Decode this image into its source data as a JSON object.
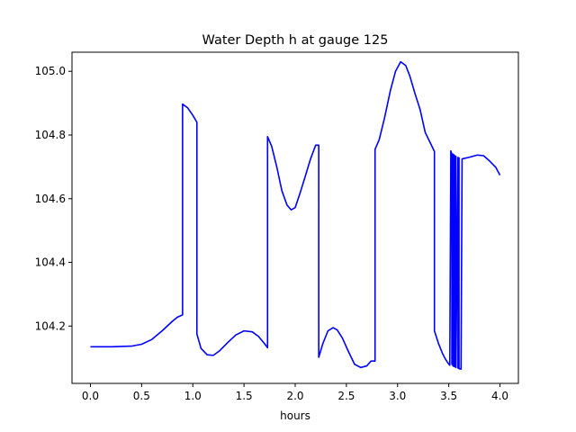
{
  "chart_data": {
    "type": "line",
    "title": "Water Depth h at gauge 125",
    "xlabel": "hours",
    "ylabel": "",
    "xlim": [
      -0.18,
      4.18
    ],
    "ylim": [
      104.02,
      105.06
    ],
    "x_ticks": [
      0.0,
      0.5,
      1.0,
      1.5,
      2.0,
      2.5,
      3.0,
      3.5,
      4.0
    ],
    "x_tick_labels": [
      "0.0",
      "0.5",
      "1.0",
      "1.5",
      "2.0",
      "2.5",
      "3.0",
      "3.5",
      "4.0"
    ],
    "y_ticks": [
      104.2,
      104.4,
      104.6,
      104.8,
      105.0
    ],
    "y_tick_labels": [
      "104.2",
      "104.4",
      "104.6",
      "104.8",
      "105.0"
    ],
    "grid": false,
    "series": [
      {
        "color": "#0000ff",
        "x": [
          0.0,
          0.2,
          0.4,
          0.5,
          0.6,
          0.7,
          0.8,
          0.85,
          0.9,
          0.9,
          0.95,
          1.0,
          1.04,
          1.04,
          1.08,
          1.14,
          1.2,
          1.26,
          1.34,
          1.42,
          1.5,
          1.58,
          1.64,
          1.7,
          1.73,
          1.73,
          1.77,
          1.82,
          1.87,
          1.92,
          1.96,
          2.0,
          2.05,
          2.1,
          2.15,
          2.2,
          2.23,
          2.23,
          2.27,
          2.32,
          2.37,
          2.41,
          2.46,
          2.52,
          2.58,
          2.64,
          2.7,
          2.74,
          2.78,
          2.78,
          2.82,
          2.87,
          2.93,
          2.98,
          3.03,
          3.08,
          3.12,
          3.17,
          3.22,
          3.27,
          3.32,
          3.36,
          3.36,
          3.4,
          3.44,
          3.47,
          3.49,
          3.51,
          3.52,
          3.53,
          3.53,
          3.54,
          3.54,
          3.55,
          3.55,
          3.56,
          3.56,
          3.57,
          3.57,
          3.59,
          3.59,
          3.6,
          3.6,
          3.62,
          3.63,
          3.63,
          3.7,
          3.78,
          3.84,
          3.9,
          3.96,
          4.0
        ],
        "y": [
          104.135,
          104.135,
          104.137,
          104.143,
          104.158,
          104.185,
          104.215,
          104.228,
          104.235,
          104.897,
          104.885,
          104.862,
          104.84,
          104.175,
          104.13,
          104.11,
          104.108,
          104.122,
          104.148,
          104.172,
          104.185,
          104.182,
          104.168,
          104.145,
          104.132,
          104.795,
          104.765,
          104.7,
          104.625,
          104.58,
          104.565,
          104.572,
          104.62,
          104.672,
          104.725,
          104.768,
          104.768,
          104.102,
          104.145,
          104.185,
          104.195,
          104.188,
          104.163,
          104.12,
          104.08,
          104.07,
          104.075,
          104.09,
          104.09,
          104.755,
          104.785,
          104.85,
          104.94,
          105.0,
          105.03,
          105.018,
          104.985,
          104.93,
          104.88,
          104.808,
          104.775,
          104.748,
          104.185,
          104.145,
          104.113,
          104.095,
          104.085,
          104.077,
          104.75,
          104.74,
          104.08,
          104.74,
          104.075,
          104.738,
          104.073,
          104.735,
          104.072,
          104.733,
          104.07,
          104.73,
          104.068,
          104.728,
          104.066,
          104.065,
          104.725,
          104.725,
          104.73,
          104.737,
          104.735,
          104.718,
          104.698,
          104.674
        ]
      }
    ]
  }
}
